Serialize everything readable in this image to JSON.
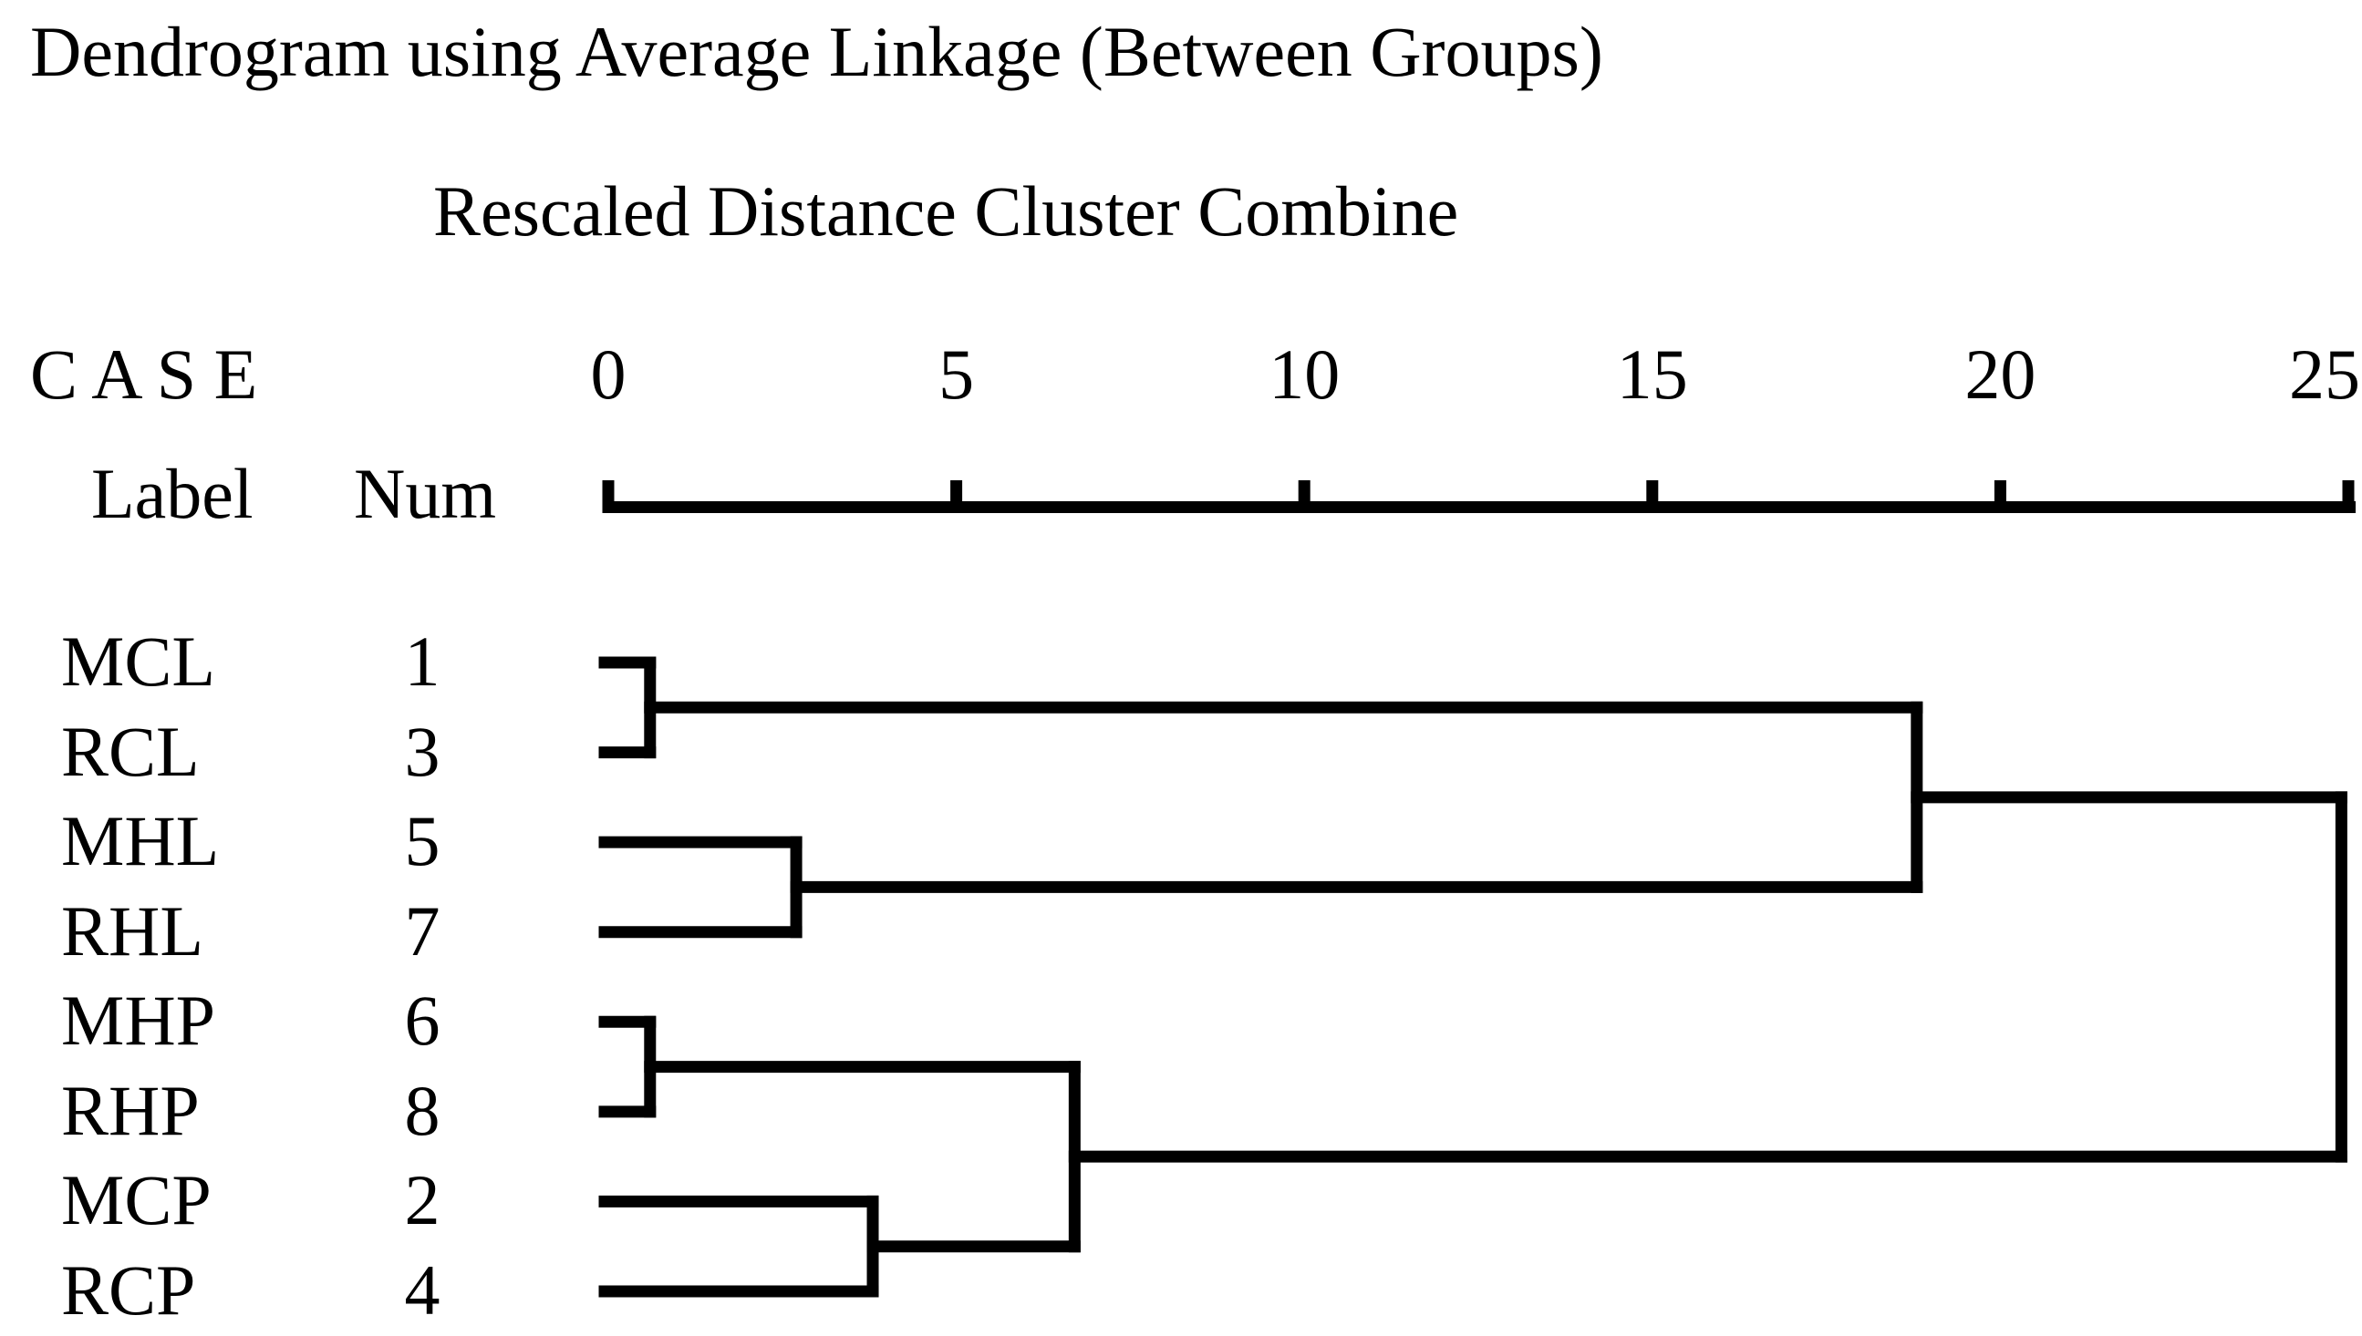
{
  "title": "Dendrogram using Average Linkage (Between Groups)",
  "subtitle": "Rescaled Distance Cluster Combine",
  "case_header": "C A S E",
  "columns": {
    "label": "Label",
    "num": "Num"
  },
  "ink_color": "#000000",
  "chart_data": {
    "type": "dendrogram",
    "orientation": "horizontal",
    "linkage_method": "Average Linkage (Between Groups)",
    "title": "Dendrogram using Average Linkage (Between Groups)",
    "distance_axis": {
      "label": "Rescaled Distance Cluster Combine",
      "ticks": [
        0,
        5,
        10,
        15,
        20,
        25
      ],
      "range": [
        0,
        25
      ],
      "grid": false
    },
    "leaves": [
      {
        "label": "MCL",
        "num": "1"
      },
      {
        "label": "RCL",
        "num": "3"
      },
      {
        "label": "MHL",
        "num": "5"
      },
      {
        "label": "RHL",
        "num": "7"
      },
      {
        "label": "MHP",
        "num": "6"
      },
      {
        "label": "RHP",
        "num": "8"
      },
      {
        "label": "MCP",
        "num": "2"
      },
      {
        "label": "RCP",
        "num": "4"
      }
    ],
    "merges": [
      {
        "a": "leaf:0",
        "b": "leaf:1",
        "distance": 0.6,
        "join": "MCL + RCL"
      },
      {
        "a": "leaf:2",
        "b": "leaf:3",
        "distance": 2.7,
        "join": "MHL + RHL"
      },
      {
        "a": "leaf:4",
        "b": "leaf:5",
        "distance": 0.6,
        "join": "MHP + RHP"
      },
      {
        "a": "leaf:6",
        "b": "leaf:7",
        "distance": 3.8,
        "join": "MCP + RCP"
      },
      {
        "a": "merge:2",
        "b": "merge:3",
        "distance": 6.7,
        "join": "(MHP,RHP) + (MCP,RCP)"
      },
      {
        "a": "merge:0",
        "b": "merge:1",
        "distance": 18.8,
        "join": "(MCL,RCL) + (MHL,RHL)"
      },
      {
        "a": "merge:5",
        "b": "merge:4",
        "distance": 24.9,
        "join": "root"
      }
    ]
  }
}
